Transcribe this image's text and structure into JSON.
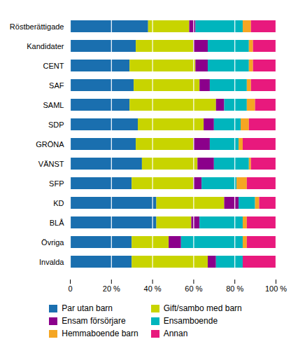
{
  "chart_data": {
    "type": "bar",
    "orientation": "horizontal",
    "stacked": true,
    "categories": [
      "Röstberättigade",
      "Kandidater",
      "CENT",
      "SAF",
      "SAML",
      "SDP",
      "GRÖNA",
      "VÄNST",
      "SFP",
      "KD",
      "BLÅ",
      "Övriga",
      "Invalda"
    ],
    "series": [
      {
        "name": "Par utan barn",
        "color": "#1a6faf",
        "values": [
          38,
          32,
          29,
          31,
          29,
          33,
          32,
          35,
          30,
          42,
          42,
          30,
          30
        ]
      },
      {
        "name": "Gift/sambo med barn",
        "color": "#c8d400",
        "values": [
          20,
          28,
          32,
          32,
          42,
          32,
          28,
          27,
          30,
          33,
          17,
          18,
          37
        ]
      },
      {
        "name": "Ensam försörjare",
        "color": "#8b008b",
        "values": [
          3,
          7,
          6,
          5,
          4,
          5,
          8,
          8,
          4,
          7,
          4,
          6,
          4
        ]
      },
      {
        "name": "Ensamboende",
        "color": "#00b5bd",
        "values": [
          23,
          20,
          20,
          18,
          11,
          13,
          14,
          17,
          17,
          8,
          21,
          30,
          13
        ]
      },
      {
        "name": "Hemmaboende barn",
        "color": "#f5a623",
        "values": [
          4,
          2,
          2,
          2,
          4,
          4,
          2,
          1,
          5,
          2,
          2,
          2,
          0
        ]
      },
      {
        "name": "Annan",
        "color": "#e8197d",
        "values": [
          12,
          11,
          11,
          12,
          10,
          13,
          16,
          12,
          14,
          8,
          14,
          14,
          16
        ]
      }
    ],
    "xlim": [
      0,
      100
    ],
    "xticks": [
      0,
      {
        "value": 20,
        "label": "20 %"
      },
      {
        "value": 40,
        "label": "40 %"
      },
      {
        "value": 60,
        "label": "60 %"
      },
      {
        "value": 80,
        "label": "80 %"
      },
      {
        "value": 100,
        "label": "100 %"
      }
    ],
    "grid": true,
    "legend": "lower center"
  }
}
